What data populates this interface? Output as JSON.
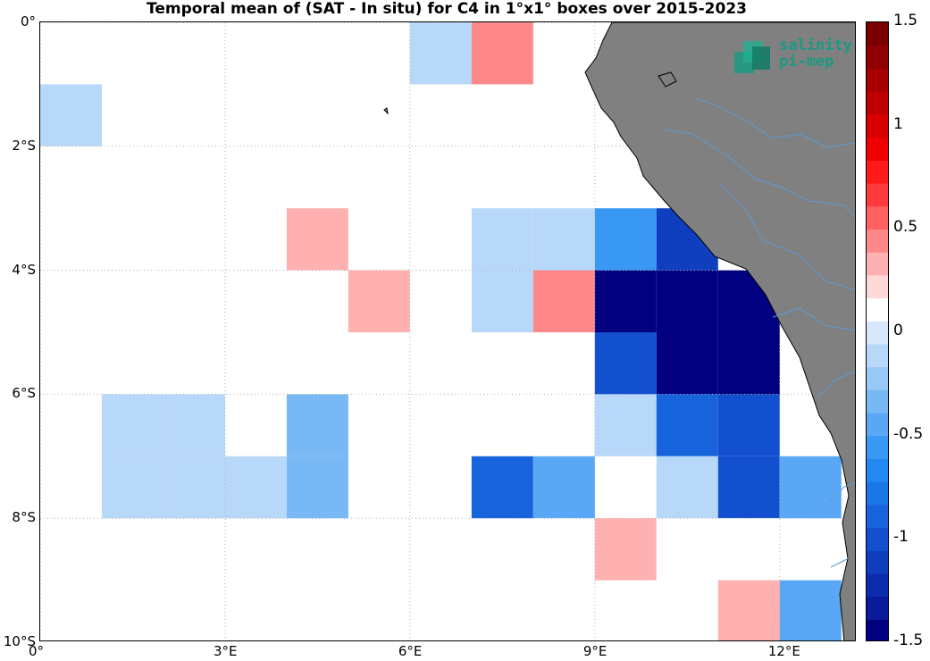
{
  "title": "Temporal mean of (SAT - In situ) for C4 in 1°x1° boxes over 2015-2023",
  "logo": {
    "line1": "salinity",
    "line2": "pi-mep"
  },
  "chart_data": {
    "type": "heatmap",
    "title": "Temporal mean of (SAT - In situ) for C4 in 1°x1° boxes over 2015-2023",
    "lon_range": [
      0,
      13.25
    ],
    "lat_range": [
      -10,
      0
    ],
    "x_ticks": [
      "0°",
      "3°E",
      "6°E",
      "9°E",
      "12°E"
    ],
    "y_ticks": [
      "0°",
      "2°S",
      "4°S",
      "6°S",
      "8°S",
      "10°S"
    ],
    "x_tick_values": [
      0,
      3,
      6,
      9,
      12
    ],
    "y_tick_values": [
      0,
      -2,
      -4,
      -6,
      -8,
      -10
    ],
    "grid": true,
    "colorbar": {
      "range": [
        -1.5,
        1.5
      ],
      "ticks": [
        "1.5",
        "1",
        "0.5",
        "0",
        "-0.5",
        "-1",
        "-1.5"
      ],
      "tick_values": [
        1.5,
        1,
        0.5,
        0,
        -0.5,
        -1,
        -1.5
      ],
      "colors_low_to_high": [
        "#000080",
        "#0a1a9a",
        "#0d2cad",
        "#0f3fbf",
        "#1350cf",
        "#1763dc",
        "#1b77e8",
        "#2288f2",
        "#3a98f5",
        "#5aa8f5",
        "#78b8f5",
        "#98c8f7",
        "#b8d8fa",
        "#d8e8fc",
        "#ffffff",
        "#ffd8d8",
        "#ffb0b0",
        "#ff8888",
        "#ff6060",
        "#ff3a3a",
        "#ff1a1a",
        "#f00000",
        "#d80000",
        "#c00000",
        "#a80000",
        "#900000",
        "#7a0000"
      ]
    },
    "cells": [
      {
        "lon": 0,
        "lat": 0,
        "value": 0.15
      },
      {
        "lon": 5,
        "lat": 0,
        "value": 0.15
      },
      {
        "lon": 6,
        "lat": 0,
        "value": -0.15
      },
      {
        "lon": 7,
        "lat": 0,
        "value": 0.45
      },
      {
        "lon": 0,
        "lat": -1,
        "value": -0.15
      },
      {
        "lon": 1,
        "lat": -1,
        "value": 0.15
      },
      {
        "lon": 2,
        "lat": -1,
        "value": 0.15
      },
      {
        "lon": 3,
        "lat": -1,
        "value": 0.15
      },
      {
        "lon": 4,
        "lat": -1,
        "value": 0.15
      },
      {
        "lon": 0,
        "lat": -2,
        "value": 0.15
      },
      {
        "lon": 2,
        "lat": -2,
        "value": 0.15
      },
      {
        "lon": 4,
        "lat": -2,
        "value": 0.15
      },
      {
        "lon": 6,
        "lat": -2,
        "value": 0.15
      },
      {
        "lon": 0,
        "lat": -3,
        "value": 0.15
      },
      {
        "lon": 1,
        "lat": -3,
        "value": 0.15
      },
      {
        "lon": 2,
        "lat": -3,
        "value": 0.15
      },
      {
        "lon": 4,
        "lat": -3,
        "value": 0.3
      },
      {
        "lon": 5,
        "lat": -3,
        "value": 0.15
      },
      {
        "lon": 7,
        "lat": -3,
        "value": -0.15
      },
      {
        "lon": 8,
        "lat": -3,
        "value": -0.15
      },
      {
        "lon": 9,
        "lat": -3,
        "value": -0.6
      },
      {
        "lon": 10,
        "lat": -3,
        "value": -1.1
      },
      {
        "lon": 5,
        "lat": -4,
        "value": 0.3
      },
      {
        "lon": 6,
        "lat": -4,
        "value": 0.15
      },
      {
        "lon": 7,
        "lat": -4,
        "value": -0.15
      },
      {
        "lon": 8,
        "lat": -4,
        "value": 0.45
      },
      {
        "lon": 9,
        "lat": -4,
        "value": -1.5
      },
      {
        "lon": 10,
        "lat": -4,
        "value": -1.5
      },
      {
        "lon": 11,
        "lat": -4,
        "value": -1.5
      },
      {
        "lon": 5,
        "lat": -5,
        "value": 0.15
      },
      {
        "lon": 6,
        "lat": -5,
        "value": 0.15
      },
      {
        "lon": 9,
        "lat": -5,
        "value": -1.0
      },
      {
        "lon": 10,
        "lat": -5,
        "value": -1.5
      },
      {
        "lon": 11,
        "lat": -5,
        "value": -1.5
      },
      {
        "lon": 1,
        "lat": -6,
        "value": -0.15
      },
      {
        "lon": 2,
        "lat": -6,
        "value": -0.15
      },
      {
        "lon": 4,
        "lat": -6,
        "value": -0.3
      },
      {
        "lon": 7,
        "lat": -6,
        "value": 0.15
      },
      {
        "lon": 9,
        "lat": -6,
        "value": -0.15
      },
      {
        "lon": 10,
        "lat": -6,
        "value": -0.85
      },
      {
        "lon": 11,
        "lat": -6,
        "value": -1.0
      },
      {
        "lon": 1,
        "lat": -7,
        "value": -0.15
      },
      {
        "lon": 2,
        "lat": -7,
        "value": -0.15
      },
      {
        "lon": 3,
        "lat": -7,
        "value": -0.15
      },
      {
        "lon": 4,
        "lat": -7,
        "value": -0.3
      },
      {
        "lon": 6,
        "lat": -7,
        "value": 0.15
      },
      {
        "lon": 7,
        "lat": -7,
        "value": -0.85
      },
      {
        "lon": 8,
        "lat": -7,
        "value": -0.4
      },
      {
        "lon": 10,
        "lat": -7,
        "value": -0.15
      },
      {
        "lon": 11,
        "lat": -7,
        "value": -1.0
      },
      {
        "lon": 12,
        "lat": -7,
        "value": -0.4
      },
      {
        "lon": 8,
        "lat": -8,
        "value": 0.15
      },
      {
        "lon": 9,
        "lat": -8,
        "value": 0.3
      },
      {
        "lon": 10,
        "lat": -8,
        "value": 0.15
      },
      {
        "lon": 11,
        "lat": -8,
        "value": 0.15
      },
      {
        "lon": 11,
        "lat": -9,
        "value": 0.3
      },
      {
        "lon": 12,
        "lat": -9,
        "value": -0.5
      }
    ],
    "land_color": "#808080",
    "river_color": "#5b9bd5"
  }
}
